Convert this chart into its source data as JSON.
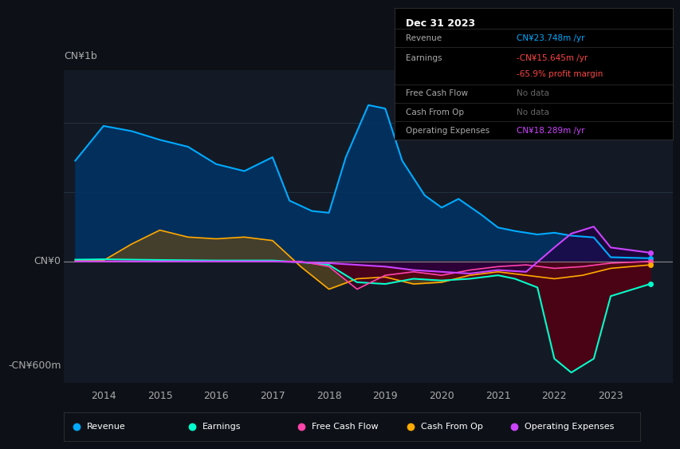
{
  "bg_color": "#0d1117",
  "plot_bg_color": "#131a25",
  "grid_color": "#2a3a4a",
  "zero_line_color": "#888888",
  "ylabel_top": "CN¥1b",
  "ylabel_bottom": "-CN¥600m",
  "y_zero_label": "CN¥0",
  "x_labels": [
    "2014",
    "2015",
    "2016",
    "2017",
    "2018",
    "2019",
    "2020",
    "2021",
    "2022",
    "2023"
  ],
  "ylim": [
    -700,
    1100
  ],
  "info_box": {
    "title": "Dec 31 2023",
    "rows": [
      {
        "label": "Revenue",
        "value": "CN¥23.748m /yr",
        "value_color": "#00aaff"
      },
      {
        "label": "Earnings",
        "value": "-CN¥15.645m /yr",
        "value_color": "#ff4444"
      },
      {
        "label": "",
        "value": "-65.9% profit margin",
        "value_color": "#ff4444"
      },
      {
        "label": "Free Cash Flow",
        "value": "No data",
        "value_color": "#666666"
      },
      {
        "label": "Cash From Op",
        "value": "No data",
        "value_color": "#666666"
      },
      {
        "label": "Operating Expenses",
        "value": "CN¥18.289m /yr",
        "value_color": "#cc44ff"
      }
    ]
  },
  "series": {
    "revenue": {
      "color": "#00aaff",
      "fill_color": "#003366",
      "label": "Revenue",
      "xs": [
        2013.5,
        2014,
        2014.5,
        2015,
        2015.5,
        2016,
        2016.5,
        2017,
        2017.3,
        2017.7,
        2018,
        2018.3,
        2018.7,
        2019,
        2019.3,
        2019.7,
        2020,
        2020.3,
        2020.7,
        2021,
        2021.3,
        2021.7,
        2022,
        2022.3,
        2022.7,
        2023,
        2023.7
      ],
      "ys": [
        580,
        780,
        750,
        700,
        660,
        560,
        520,
        600,
        350,
        290,
        280,
        600,
        900,
        880,
        580,
        380,
        310,
        360,
        270,
        195,
        175,
        155,
        165,
        148,
        138,
        24,
        18
      ]
    },
    "earnings": {
      "color": "#00ffcc",
      "fill_color": "#003322",
      "label": "Earnings",
      "xs": [
        2013.5,
        2014,
        2015,
        2016,
        2017,
        2017.5,
        2018,
        2018.5,
        2019,
        2019.5,
        2020,
        2020.5,
        2021,
        2021.3,
        2021.7,
        2022,
        2022.3,
        2022.7,
        2023,
        2023.7
      ],
      "ys": [
        10,
        12,
        8,
        5,
        5,
        -5,
        -20,
        -120,
        -130,
        -100,
        -110,
        -100,
        -80,
        -100,
        -150,
        -560,
        -640,
        -560,
        -200,
        -130
      ]
    },
    "fcf": {
      "color": "#ff44aa",
      "fill_color": "#660033",
      "label": "Free Cash Flow",
      "xs": [
        2013.5,
        2014,
        2015,
        2016,
        2017,
        2017.5,
        2018,
        2018.5,
        2019,
        2019.5,
        2020,
        2020.5,
        2021,
        2021.5,
        2022,
        2022.5,
        2023,
        2023.7
      ],
      "ys": [
        0,
        0,
        0,
        0,
        0,
        0,
        -30,
        -160,
        -80,
        -60,
        -80,
        -50,
        -30,
        -20,
        -40,
        -30,
        -10,
        0
      ]
    },
    "cashfromop": {
      "color": "#ffaa00",
      "fill_color": "#554422",
      "label": "Cash From Op",
      "xs": [
        2013.5,
        2014,
        2014.5,
        2015,
        2015.5,
        2016,
        2016.5,
        2017,
        2017.5,
        2018,
        2018.5,
        2019,
        2019.5,
        2020,
        2020.5,
        2021,
        2021.5,
        2022,
        2022.5,
        2023,
        2023.7
      ],
      "ys": [
        5,
        5,
        100,
        180,
        140,
        130,
        140,
        120,
        -30,
        -160,
        -100,
        -90,
        -130,
        -120,
        -80,
        -60,
        -80,
        -100,
        -80,
        -40,
        -20
      ]
    },
    "opex": {
      "color": "#cc44ff",
      "fill_color": "#220044",
      "label": "Operating Expenses",
      "xs": [
        2013.5,
        2014,
        2015,
        2016,
        2017,
        2018,
        2018.5,
        2019,
        2019.5,
        2020,
        2020.5,
        2021,
        2021.5,
        2022,
        2022.3,
        2022.7,
        2023,
        2023.7
      ],
      "ys": [
        0,
        0,
        0,
        0,
        0,
        -10,
        -20,
        -30,
        -50,
        -60,
        -70,
        -50,
        -60,
        80,
        160,
        200,
        80,
        50
      ]
    }
  },
  "legend": [
    {
      "label": "Revenue",
      "color": "#00aaff"
    },
    {
      "label": "Earnings",
      "color": "#00ffcc"
    },
    {
      "label": "Free Cash Flow",
      "color": "#ff44aa"
    },
    {
      "label": "Cash From Op",
      "color": "#ffaa00"
    },
    {
      "label": "Operating Expenses",
      "color": "#cc44ff"
    }
  ]
}
